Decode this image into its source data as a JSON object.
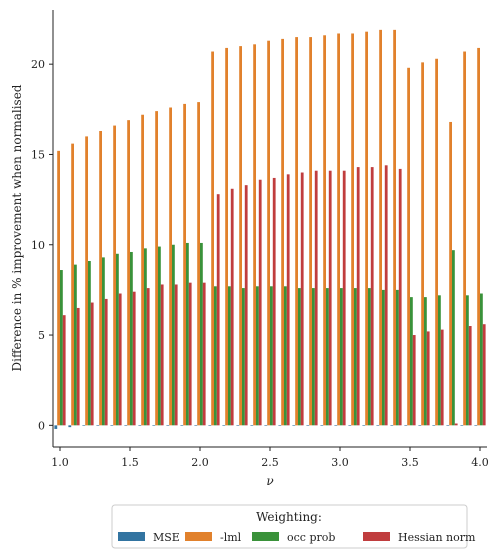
{
  "chart_data": {
    "type": "bar",
    "xlabel": "ν",
    "ylabel": "Difference in % improvement when normalised",
    "xlim": [
      0.95,
      4.05
    ],
    "ylim": [
      -1.2,
      23.0
    ],
    "yticks": [
      0,
      5,
      10,
      15,
      20
    ],
    "xticks": [
      1.0,
      1.5,
      2.0,
      2.5,
      3.0,
      3.5,
      4.0
    ],
    "ytick_labels": [
      "0",
      "5",
      "10",
      "15",
      "20"
    ],
    "xtick_labels": [
      "1.0",
      "1.5",
      "2.0",
      "2.5",
      "3.0",
      "3.5",
      "4.0"
    ],
    "grid": false,
    "legend_placement": "bottom-center, below axes",
    "legend_title": "Weighting:",
    "x": [
      1.0,
      1.1,
      1.2,
      1.3,
      1.4,
      1.5,
      1.6,
      1.7,
      1.8,
      1.9,
      2.0,
      2.1,
      2.2,
      2.3,
      2.4,
      2.5,
      2.6,
      2.7,
      2.8,
      2.9,
      3.0,
      3.1,
      3.2,
      3.3,
      3.4,
      3.5,
      3.6,
      3.7,
      3.8,
      3.9,
      4.0
    ],
    "series": [
      {
        "name": "MSE",
        "color": "#3274a1",
        "values": [
          -0.2,
          -0.1,
          0,
          0,
          0,
          0,
          0,
          0,
          0,
          0,
          0,
          0,
          0,
          0,
          0,
          0,
          0,
          0,
          0,
          0,
          0,
          0,
          0,
          0,
          0,
          0,
          0,
          0,
          0,
          0,
          0
        ]
      },
      {
        "name": "-lml",
        "color": "#e1812c",
        "values": [
          15.2,
          15.6,
          16.0,
          16.3,
          16.6,
          16.9,
          17.2,
          17.4,
          17.6,
          17.8,
          17.9,
          20.7,
          20.9,
          21.0,
          21.1,
          21.3,
          21.4,
          21.5,
          21.5,
          21.6,
          21.7,
          21.7,
          21.8,
          21.9,
          21.9,
          19.8,
          20.1,
          20.3,
          16.8,
          20.7,
          20.9
        ]
      },
      {
        "name": "occ prob",
        "color": "#3a923a",
        "values": [
          8.6,
          8.9,
          9.1,
          9.3,
          9.5,
          9.6,
          9.8,
          9.9,
          10.0,
          10.1,
          10.1,
          7.7,
          7.7,
          7.6,
          7.7,
          7.7,
          7.7,
          7.6,
          7.6,
          7.6,
          7.6,
          7.6,
          7.6,
          7.5,
          7.5,
          7.1,
          7.1,
          7.2,
          9.7,
          7.2,
          7.3
        ]
      },
      {
        "name": "Hessian norm",
        "color": "#c03d3e",
        "values": [
          6.1,
          6.5,
          6.8,
          7.0,
          7.3,
          7.4,
          7.6,
          7.8,
          7.8,
          7.9,
          7.9,
          12.8,
          13.1,
          13.3,
          13.6,
          13.7,
          13.9,
          14.0,
          14.1,
          14.1,
          14.1,
          14.3,
          14.3,
          14.4,
          14.2,
          5.0,
          5.2,
          5.3,
          0.1,
          5.5,
          5.6
        ]
      }
    ]
  }
}
